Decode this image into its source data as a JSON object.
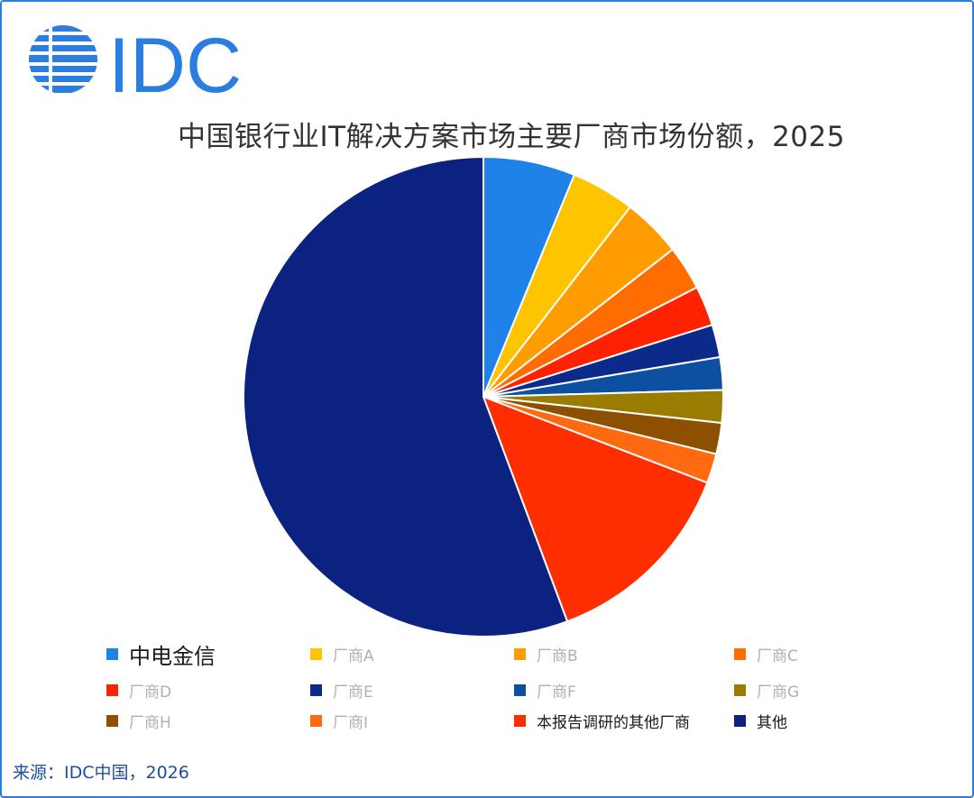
{
  "logo": {
    "text": "IDC",
    "color": "#2a7de1"
  },
  "chart_data": {
    "type": "pie",
    "title": "中国银行业IT解决方案市场主要厂商市场份额，2025",
    "slices": [
      {
        "label": "中电金信",
        "value": 6.2,
        "color": "#1e82e8"
      },
      {
        "label": "厂商A",
        "value": 4.3,
        "color": "#ffc400"
      },
      {
        "label": "厂商B",
        "value": 4.0,
        "color": "#ff9d00"
      },
      {
        "label": "厂商C",
        "value": 3.0,
        "color": "#ff6d00"
      },
      {
        "label": "厂商D",
        "value": 2.7,
        "color": "#ff2200"
      },
      {
        "label": "厂商E",
        "value": 2.2,
        "color": "#0b2a8a"
      },
      {
        "label": "厂商F",
        "value": 2.2,
        "color": "#0d4fa0"
      },
      {
        "label": "厂商G",
        "value": 2.2,
        "color": "#9a7d00"
      },
      {
        "label": "厂商H",
        "value": 2.1,
        "color": "#8c5000"
      },
      {
        "label": "厂商I",
        "value": 2.0,
        "color": "#ff6a10"
      },
      {
        "label": "本报告调研的其他厂商",
        "value": 13.5,
        "color": "#ff2e00"
      },
      {
        "label": "其他",
        "value": 55.8,
        "color": "#0c2280"
      }
    ],
    "legend_position": "bottom"
  },
  "source": "来源：IDC中国，2026"
}
